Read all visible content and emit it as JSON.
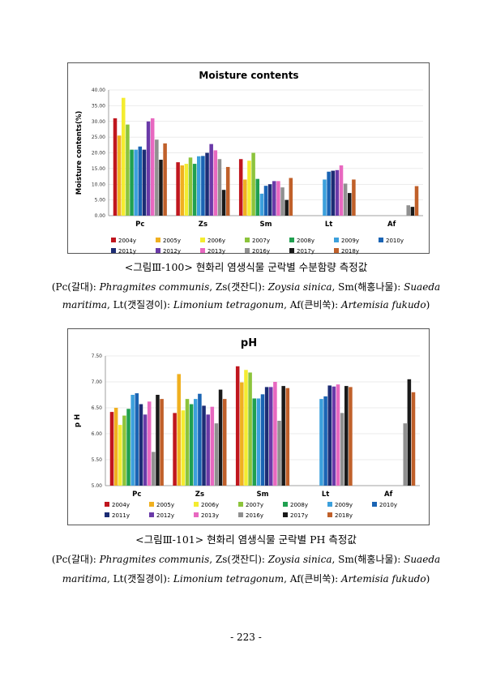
{
  "captions": [
    {
      "title": "<그림Ⅲ-100> 현화리 염생식물 군락별 수분함량 측정값",
      "species_line1": [
        "(Pc(갈대): ",
        "Phragmites communis",
        ", Zs(갯잔디): ",
        "Zoysia sinica",
        ", Sm(해홍나물): ",
        "Suaeda"
      ],
      "species_line2": [
        "maritima",
        ", Lt(갯질경이): ",
        "Limonium tetragonum",
        ", Af(큰비쑥): ",
        "Artemisia fukudo",
        ")"
      ]
    },
    {
      "title": "<그림Ⅲ-101> 현화리 염생식물 군락별 PH 측정값",
      "species_line1": [
        "(Pc(갈대): ",
        "Phragmites communis",
        ", Zs(갯잔디): ",
        "Zoysia sinica",
        ", Sm(해홍나물): ",
        "Suaeda"
      ],
      "species_line2": [
        "maritima",
        ", Lt(갯질경이): ",
        "Limonium tetragonum",
        ", Af(큰비쑥): ",
        "Artemisia fukudo",
        ")"
      ]
    }
  ],
  "page_number": "- 223 -",
  "series_colors": {
    "2004y": "#c0161e",
    "2005y": "#f0b020",
    "2006y": "#f4ec30",
    "2007y": "#8cc43c",
    "2008y": "#20a050",
    "2009y": "#3ca0dc",
    "2010y": "#1a64b4",
    "2011y": "#1c2c74",
    "2012y": "#6a3aa8",
    "2013y": "#e868c0",
    "2016y": "#909090",
    "2017y": "#1a1a1a",
    "2018y": "#c0602a"
  },
  "chart_data": [
    {
      "type": "bar",
      "title": "Moisture contents",
      "xlabel": "",
      "ylabel": "Moisture contents(%)",
      "ylim": [
        0,
        40
      ],
      "yticks": [
        "0.00",
        "5.00",
        "10.00",
        "15.00",
        "20.00",
        "25.00",
        "30.00",
        "35.00",
        "40.00"
      ],
      "categories": [
        "Pc",
        "Zs",
        "Sm",
        "Lt",
        "Af"
      ],
      "legend_position": "bottom",
      "series": [
        {
          "name": "2004y",
          "values": [
            31.0,
            17.0,
            18.0,
            null,
            null
          ]
        },
        {
          "name": "2005y",
          "values": [
            25.5,
            16.0,
            11.5,
            null,
            null
          ]
        },
        {
          "name": "2006y",
          "values": [
            37.5,
            16.5,
            17.5,
            null,
            null
          ]
        },
        {
          "name": "2007y",
          "values": [
            29.0,
            18.5,
            20.0,
            null,
            null
          ]
        },
        {
          "name": "2008y",
          "values": [
            21.0,
            16.5,
            11.7,
            null,
            null
          ]
        },
        {
          "name": "2009y",
          "values": [
            21.0,
            18.9,
            7.0,
            11.5,
            null
          ]
        },
        {
          "name": "2010y",
          "values": [
            22.0,
            19.0,
            9.5,
            14.0,
            null
          ]
        },
        {
          "name": "2011y",
          "values": [
            21.0,
            20.0,
            10.0,
            14.3,
            null
          ]
        },
        {
          "name": "2012y",
          "values": [
            30.0,
            22.8,
            11.0,
            14.5,
            null
          ]
        },
        {
          "name": "2013y",
          "values": [
            31.0,
            20.8,
            11.0,
            16.0,
            null
          ]
        },
        {
          "name": "2016y",
          "values": [
            24.2,
            18.0,
            9.0,
            10.2,
            3.3
          ]
        },
        {
          "name": "2017y",
          "values": [
            17.8,
            8.2,
            5.0,
            7.2,
            2.8
          ]
        },
        {
          "name": "2018y",
          "values": [
            23.0,
            15.5,
            12.0,
            11.5,
            9.4
          ]
        }
      ]
    },
    {
      "type": "bar",
      "title": "pH",
      "xlabel": "",
      "ylabel": "p H",
      "ylim": [
        5.0,
        7.5
      ],
      "yticks": [
        "5.00",
        "5.50",
        "6.00",
        "6.50",
        "7.00",
        "7.50"
      ],
      "categories": [
        "Pc",
        "Zs",
        "Sm",
        "Lt",
        "Af"
      ],
      "legend_position": "bottom",
      "series": [
        {
          "name": "2004y",
          "values": [
            6.42,
            6.4,
            7.3,
            null,
            null
          ]
        },
        {
          "name": "2005y",
          "values": [
            6.5,
            7.15,
            6.99,
            null,
            null
          ]
        },
        {
          "name": "2006y",
          "values": [
            6.17,
            6.45,
            7.23,
            null,
            null
          ]
        },
        {
          "name": "2007y",
          "values": [
            6.35,
            6.67,
            7.18,
            null,
            null
          ]
        },
        {
          "name": "2008y",
          "values": [
            6.48,
            6.57,
            6.68,
            null,
            null
          ]
        },
        {
          "name": "2009y",
          "values": [
            6.75,
            6.67,
            6.68,
            6.67,
            null
          ]
        },
        {
          "name": "2010y",
          "values": [
            6.78,
            6.77,
            6.76,
            6.72,
            null
          ]
        },
        {
          "name": "2011y",
          "values": [
            6.57,
            6.54,
            6.9,
            6.93,
            null
          ]
        },
        {
          "name": "2012y",
          "values": [
            6.37,
            6.37,
            6.9,
            6.91,
            null
          ]
        },
        {
          "name": "2013y",
          "values": [
            6.62,
            6.52,
            7.0,
            6.95,
            null
          ]
        },
        {
          "name": "2016y",
          "values": [
            5.65,
            6.2,
            6.25,
            6.4,
            6.2
          ]
        },
        {
          "name": "2017y",
          "values": [
            6.75,
            6.85,
            6.92,
            6.92,
            7.05
          ]
        },
        {
          "name": "2018y",
          "values": [
            6.67,
            6.67,
            6.88,
            6.9,
            6.8
          ]
        }
      ]
    }
  ]
}
